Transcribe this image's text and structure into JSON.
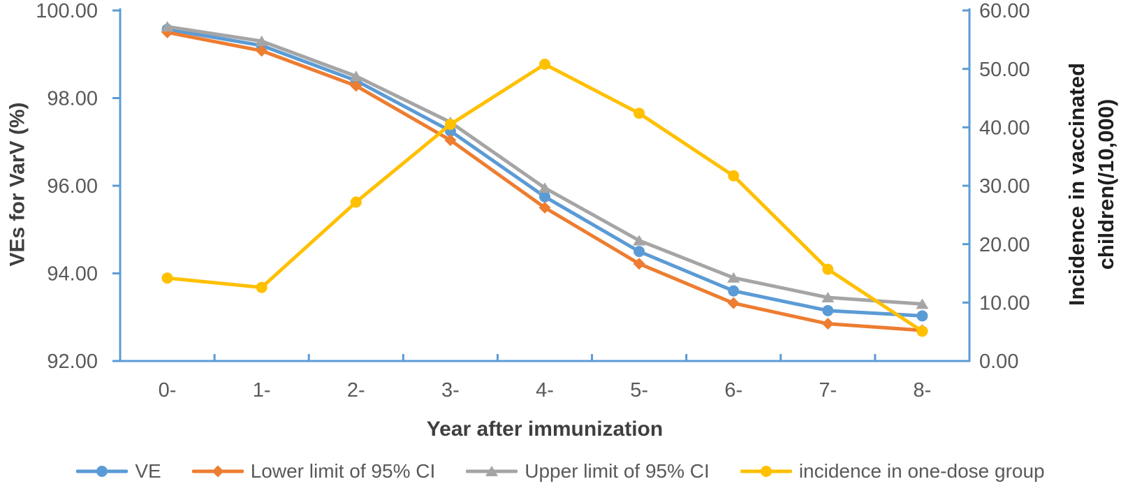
{
  "figure": {
    "background": "#ffffff",
    "axis_color": "#5B9BD5",
    "tick_label_color": "#595959",
    "title_color": "#3f3f3f",
    "right_title_color": "#1f1f1f",
    "legend_text_color": "#595959"
  },
  "chart_data": {
    "type": "line",
    "title": "",
    "xlabel": "Year after immunization",
    "categories": [
      "0-",
      "1-",
      "2-",
      "3-",
      "4-",
      "5-",
      "6-",
      "7-",
      "8-"
    ],
    "grid": false,
    "legend_position": "bottom",
    "left_axis": {
      "label": "VEs for VarV (%)",
      "min": 92,
      "max": 100,
      "step": 2,
      "tick_labels": [
        "100.00",
        "98.00",
        "96.00",
        "94.00",
        "92.00"
      ]
    },
    "right_axis": {
      "label_line1": "Incidence in vaccinated",
      "label_line2": "children(/10,000)",
      "min": 0,
      "max": 60,
      "step": 10,
      "tick_labels": [
        "60.00",
        "50.00",
        "40.00",
        "30.00",
        "20.00",
        "10.00",
        "0.00"
      ]
    },
    "series": [
      {
        "name": "VE",
        "axis": "left",
        "color": "#5B9BD5",
        "marker": "circle",
        "values": [
          99.57,
          99.2,
          98.4,
          97.25,
          95.75,
          94.5,
          93.6,
          93.15,
          93.03
        ]
      },
      {
        "name": "Lower limit of 95% CI",
        "axis": "left",
        "color": "#ED7D31",
        "marker": "diamond",
        "values": [
          99.5,
          99.08,
          98.28,
          97.04,
          95.5,
          94.22,
          93.32,
          92.85,
          92.7
        ]
      },
      {
        "name": "Upper limit of 95% CI",
        "axis": "left",
        "color": "#A5A5A5",
        "marker": "triangle",
        "values": [
          99.63,
          99.3,
          98.5,
          97.45,
          95.95,
          94.75,
          93.9,
          93.45,
          93.3
        ]
      },
      {
        "name": "incidence in one-dose group",
        "axis": "right",
        "color": "#FFC000",
        "marker": "circle",
        "values": [
          14.2,
          12.6,
          27.2,
          40.5,
          50.8,
          42.4,
          31.7,
          15.7,
          5.1
        ]
      }
    ]
  }
}
